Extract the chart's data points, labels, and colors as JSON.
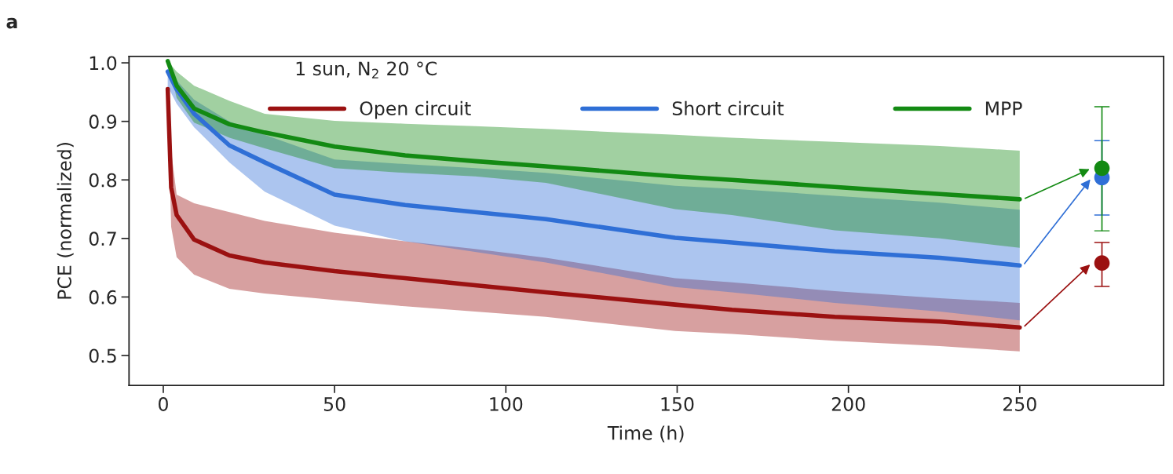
{
  "chart_data": {
    "type": "line",
    "xlabel": "Time (h)",
    "ylabel": "PCE (normalized)",
    "annotations": [
      "a",
      "1 sun, N$_{2}$ 20 °C"
    ],
    "xlim": [
      -10,
      292
    ],
    "ylim": [
      0.449,
      1.011
    ],
    "xticks": [
      0,
      50,
      100,
      150,
      200,
      250
    ],
    "yticks": [
      0.5,
      0.6,
      0.7,
      0.8,
      0.9,
      {
        "value": 1,
        "label": "1.0"
      }
    ],
    "grid": false,
    "legend": "top",
    "line_style": "solid",
    "marker": "none",
    "series": [
      {
        "name": "Open circuit",
        "color": "#9b1111",
        "x": [
          1.3,
          2.3,
          3.9,
          9,
          19.3,
          29.6,
          50,
          70.6,
          91,
          111.7,
          149.4,
          166,
          196,
          226.7,
          250
        ],
        "values": [
          0.955,
          0.787,
          0.74,
          0.698,
          0.671,
          0.659,
          0.644,
          0.632,
          0.62,
          0.608,
          0.587,
          0.578,
          0.566,
          0.558,
          0.548
        ],
        "upper": [
          0.96,
          0.85,
          0.775,
          0.76,
          0.745,
          0.73,
          0.71,
          0.695,
          0.682,
          0.667,
          0.632,
          0.625,
          0.61,
          0.598,
          0.59
        ],
        "lower": [
          0.95,
          0.72,
          0.668,
          0.638,
          0.614,
          0.606,
          0.595,
          0.584,
          0.575,
          0.566,
          0.542,
          0.537,
          0.525,
          0.516,
          0.507
        ]
      },
      {
        "name": "Short circuit",
        "color": "#2f6fd6",
        "x": [
          1.3,
          3.9,
          9,
          19.3,
          29.6,
          50,
          70.6,
          91,
          111.7,
          149.4,
          166,
          196,
          226.7,
          250
        ],
        "values": [
          0.985,
          0.955,
          0.913,
          0.859,
          0.83,
          0.775,
          0.757,
          0.745,
          0.733,
          0.701,
          0.693,
          0.678,
          0.667,
          0.654
        ],
        "upper": [
          0.99,
          0.97,
          0.937,
          0.9,
          0.877,
          0.835,
          0.827,
          0.82,
          0.812,
          0.79,
          0.785,
          0.773,
          0.761,
          0.749
        ],
        "lower": [
          0.96,
          0.93,
          0.89,
          0.83,
          0.78,
          0.722,
          0.695,
          0.677,
          0.659,
          0.617,
          0.608,
          0.59,
          0.575,
          0.56
        ]
      },
      {
        "name": "MPP",
        "color": "#138a13",
        "x": [
          1.3,
          3.9,
          9,
          19.3,
          29.6,
          50,
          70.6,
          91,
          111.7,
          149.4,
          166,
          196,
          226.7,
          250
        ],
        "values": [
          1.003,
          0.961,
          0.922,
          0.895,
          0.881,
          0.857,
          0.842,
          0.832,
          0.823,
          0.806,
          0.8,
          0.788,
          0.776,
          0.767
        ],
        "upper": [
          1.003,
          0.985,
          0.961,
          0.935,
          0.913,
          0.901,
          0.896,
          0.892,
          0.887,
          0.877,
          0.872,
          0.865,
          0.858,
          0.85
        ],
        "lower": [
          1.003,
          0.94,
          0.898,
          0.872,
          0.854,
          0.82,
          0.812,
          0.806,
          0.795,
          0.75,
          0.74,
          0.714,
          0.7,
          0.684
        ]
      },
      {
        "type": "scatter",
        "marker": "circle",
        "color": "#9b1111",
        "x": [
          274
        ],
        "values": [
          0.658
        ],
        "errors": [
          [
            0.618,
            0.693
          ]
        ]
      },
      {
        "type": "scatter",
        "marker": "circle",
        "color": "#2f6fd6",
        "x": [
          274
        ],
        "values": [
          0.804
        ],
        "errors": [
          [
            0.74,
            0.867
          ]
        ]
      },
      {
        "type": "scatter",
        "marker": "circle",
        "color": "#138a13",
        "x": [
          274
        ],
        "values": [
          0.82
        ],
        "errors": [
          [
            0.713,
            0.925
          ]
        ]
      }
    ]
  }
}
